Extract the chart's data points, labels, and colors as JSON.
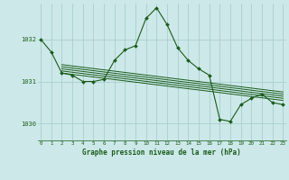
{
  "background_color": "#cce8e8",
  "grid_color": "#aacece",
  "line_color": "#1a5c1a",
  "marker_color": "#1a5c1a",
  "title": "Graphe pression niveau de la mer (hPa)",
  "hours": [
    0,
    1,
    2,
    3,
    4,
    5,
    6,
    7,
    8,
    9,
    10,
    11,
    12,
    13,
    14,
    15,
    16,
    17,
    18,
    19,
    20,
    21,
    22,
    23
  ],
  "yticks": [
    1030,
    1031,
    1032
  ],
  "ylim": [
    1029.6,
    1032.85
  ],
  "xlim": [
    -0.3,
    23.3
  ],
  "series_main": [
    1032.0,
    1031.7,
    1031.2,
    1031.15,
    1031.0,
    1031.0,
    1031.05,
    1031.5,
    1031.75,
    1031.85,
    1032.5,
    1032.75,
    1032.35,
    1031.8,
    1031.5,
    1031.3,
    1031.15,
    1030.1,
    1030.05,
    1030.45,
    1030.6,
    1030.7,
    1030.5,
    1030.45
  ],
  "trend_start": [
    1031.2,
    1031.25,
    1031.3,
    1031.35,
    1031.4
  ],
  "trend_end": [
    1030.55,
    1030.6,
    1030.65,
    1030.7,
    1030.75
  ]
}
